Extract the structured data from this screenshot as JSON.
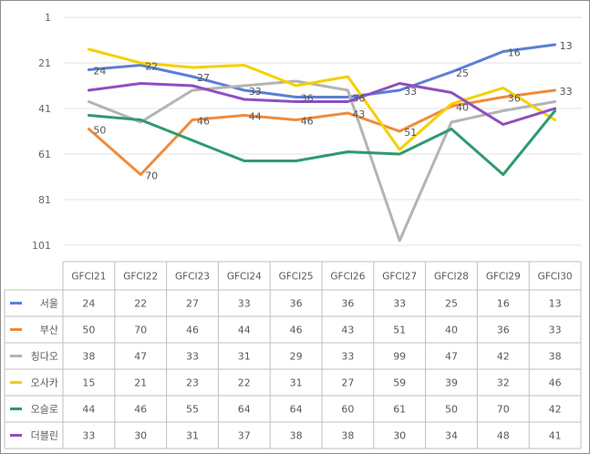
{
  "chart_data": {
    "type": "line",
    "title": "",
    "xlabel": "",
    "ylabel": "",
    "y_reversed": true,
    "ylim": [
      1,
      101
    ],
    "y_ticks": [
      1,
      21,
      41,
      61,
      81,
      101
    ],
    "grid": true,
    "legend": "data-table",
    "categories": [
      "GFCI21",
      "GFCI22",
      "GFCI23",
      "GFCI24",
      "GFCI25",
      "GFCI26",
      "GFCI27",
      "GFCI28",
      "GFCI29",
      "GFCI30"
    ],
    "series": [
      {
        "name": "서울",
        "color": "#5b7fd6",
        "labels": true,
        "values": [
          24,
          22,
          27,
          33,
          36,
          36,
          33,
          25,
          16,
          13
        ]
      },
      {
        "name": "부산",
        "color": "#f08a3c",
        "labels": true,
        "values": [
          50,
          70,
          46,
          44,
          46,
          43,
          51,
          40,
          36,
          33
        ]
      },
      {
        "name": "칭다오",
        "color": "#b4b4b4",
        "labels": false,
        "values": [
          38,
          47,
          33,
          31,
          29,
          33,
          99,
          47,
          42,
          38
        ]
      },
      {
        "name": "오사카",
        "color": "#f5d000",
        "labels": false,
        "values": [
          15,
          21,
          23,
          22,
          31,
          27,
          59,
          39,
          32,
          46
        ]
      },
      {
        "name": "오슬로",
        "color": "#2e9a6e",
        "labels": false,
        "values": [
          44,
          46,
          55,
          64,
          64,
          60,
          61,
          50,
          70,
          42
        ]
      },
      {
        "name": "더블린",
        "color": "#8e4fc0",
        "labels": false,
        "values": [
          33,
          30,
          31,
          37,
          38,
          38,
          30,
          34,
          48,
          41
        ]
      }
    ]
  }
}
